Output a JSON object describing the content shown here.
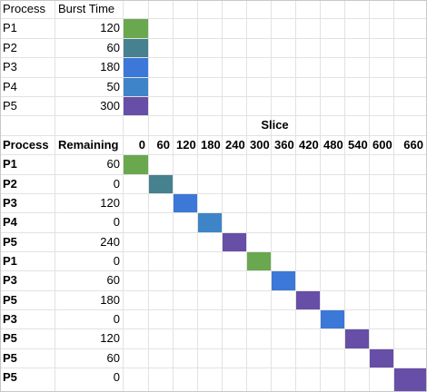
{
  "colors": {
    "P1": "#6aa84f",
    "P2": "#45818e",
    "P3": "#3c78d8",
    "P4": "#3d85c6",
    "P5": "#674ea7"
  },
  "burst_table": {
    "headers": [
      "Process",
      "Burst Time"
    ],
    "rows": [
      {
        "process": "P1",
        "burst": "120"
      },
      {
        "process": "P2",
        "burst": "60"
      },
      {
        "process": "P3",
        "burst": "180"
      },
      {
        "process": "P4",
        "burst": "50"
      },
      {
        "process": "P5",
        "burst": "300"
      }
    ]
  },
  "schedule": {
    "slice_title": "Slice",
    "headers": [
      "Process",
      "Remaining"
    ],
    "slices": [
      "0",
      "60",
      "120",
      "180",
      "240",
      "300",
      "360",
      "420",
      "480",
      "540",
      "600",
      "660"
    ],
    "rows": [
      {
        "process": "P1",
        "remaining": "60"
      },
      {
        "process": "P2",
        "remaining": "0"
      },
      {
        "process": "P3",
        "remaining": "120"
      },
      {
        "process": "P4",
        "remaining": "0"
      },
      {
        "process": "P5",
        "remaining": "240"
      },
      {
        "process": "P1",
        "remaining": "0"
      },
      {
        "process": "P3",
        "remaining": "60"
      },
      {
        "process": "P5",
        "remaining": "180"
      },
      {
        "process": "P3",
        "remaining": "0"
      },
      {
        "process": "P5",
        "remaining": "120"
      },
      {
        "process": "P5",
        "remaining": "60"
      },
      {
        "process": "P5",
        "remaining": "0"
      }
    ]
  }
}
